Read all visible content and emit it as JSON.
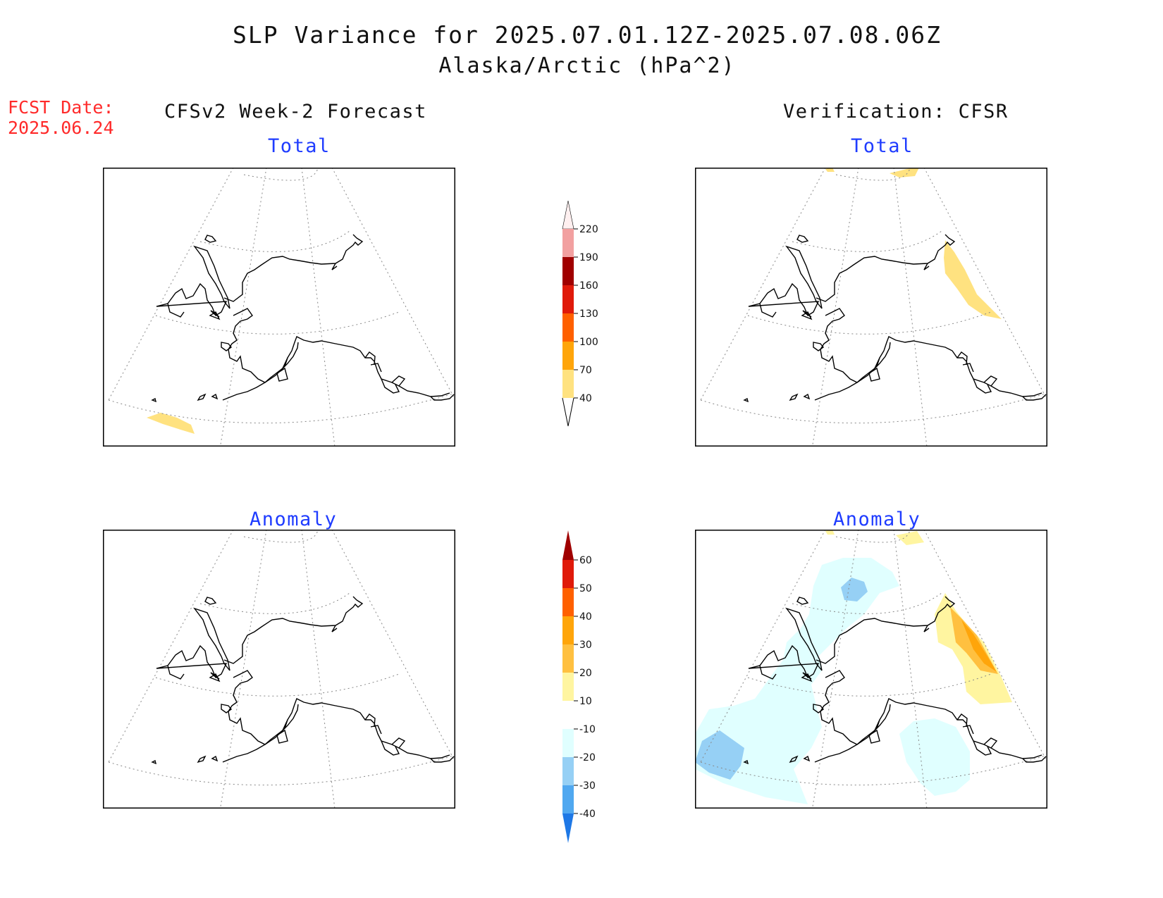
{
  "header": {
    "title": "SLP Variance for 2025.07.01.12Z-2025.07.08.06Z",
    "subtitle": "Alaska/Arctic (hPa^2)",
    "fcst_date_label": "FCST Date:",
    "fcst_date_value": "2025.06.24"
  },
  "columns": {
    "left": "CFSv2 Week-2 Forecast",
    "right": "Verification: CFSR"
  },
  "panels": {
    "top_left": "Total",
    "top_right": "Total",
    "bottom_left": "Anomaly",
    "bottom_right": "Anomaly"
  },
  "colorbars": {
    "total": {
      "ticks": [
        "220",
        "190",
        "160",
        "130",
        "100",
        "70",
        "40"
      ],
      "colors": [
        "#fff0f0",
        "#f2a0a0",
        "#a00000",
        "#e01a0a",
        "#ff6000",
        "#ffa50a",
        "#ffe280"
      ]
    },
    "anomaly": {
      "ticks": [
        "60",
        "50",
        "40",
        "30",
        "20",
        "10",
        "-10",
        "-20",
        "-30",
        "-40"
      ],
      "colors": [
        "#a00000",
        "#e01a0a",
        "#ff6000",
        "#ffa50a",
        "#ffc040",
        "#fff5a0",
        "#ffffff",
        "#e0ffff",
        "#96d0f5",
        "#50a8f0",
        "#1e78e6"
      ]
    }
  },
  "map_colors": {
    "land_outline": "#000000",
    "graticule": "#888888",
    "shade_40_70": "#ffe280",
    "anom_10_20": "#fff5a0",
    "anom_20_30": "#ffc040",
    "anom_30_40": "#ffa50a",
    "anom_neg10_20": "#e0ffff",
    "anom_neg20_30": "#96d0f5"
  }
}
